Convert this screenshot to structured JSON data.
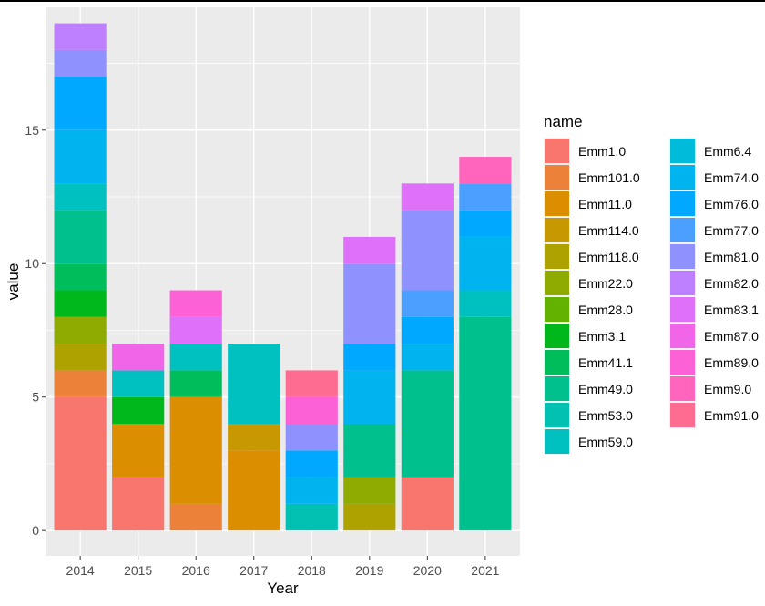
{
  "chart_data": {
    "type": "bar",
    "stacked": true,
    "xlabel": "Year",
    "ylabel": "value",
    "ylim": [
      -0.95,
      19.6
    ],
    "y_ticks": [
      0,
      5,
      10,
      15
    ],
    "categories": [
      "2014",
      "2015",
      "2016",
      "2017",
      "2018",
      "2019",
      "2020",
      "2021"
    ],
    "grid": true,
    "background": "#ebebeb",
    "legend": {
      "title": "name",
      "position": "right",
      "columns": 2
    },
    "series": [
      {
        "name": "Emm1.0",
        "color": "#F8766D",
        "values": [
          5,
          2,
          0,
          0,
          0,
          0,
          2,
          0
        ]
      },
      {
        "name": "Emm101.0",
        "color": "#EC8239",
        "values": [
          1,
          0,
          1,
          0,
          0,
          0,
          0,
          0
        ]
      },
      {
        "name": "Emm11.0",
        "color": "#DB8E00",
        "values": [
          0,
          2,
          4,
          3,
          0,
          0,
          0,
          0
        ]
      },
      {
        "name": "Emm114.0",
        "color": "#C79800",
        "values": [
          0,
          0,
          0,
          1,
          0,
          0,
          0,
          0
        ]
      },
      {
        "name": "Emm118.0",
        "color": "#AEA200",
        "values": [
          1,
          0,
          0,
          0,
          0,
          1,
          0,
          0
        ]
      },
      {
        "name": "Emm22.0",
        "color": "#8FAA00",
        "values": [
          1,
          0,
          0,
          0,
          0,
          1,
          0,
          0
        ]
      },
      {
        "name": "Emm28.0",
        "color": "#64B200",
        "values": [
          0,
          0,
          0,
          0,
          0,
          0,
          0,
          0
        ]
      },
      {
        "name": "Emm3.1",
        "color": "#00B81B",
        "values": [
          1,
          1,
          0,
          0,
          0,
          0,
          0,
          0
        ]
      },
      {
        "name": "Emm41.1",
        "color": "#00BD5C",
        "values": [
          1,
          0,
          1,
          0,
          0,
          0,
          0,
          0
        ]
      },
      {
        "name": "Emm49.0",
        "color": "#00C08D",
        "values": [
          2,
          0,
          0,
          0,
          0,
          2,
          4,
          8
        ]
      },
      {
        "name": "Emm53.0",
        "color": "#00C1B2",
        "values": [
          0,
          0,
          0,
          0,
          1,
          0,
          0,
          0
        ]
      },
      {
        "name": "Emm59.0",
        "color": "#00C0C0",
        "values": [
          1,
          1,
          1,
          3,
          0,
          0,
          0,
          1
        ]
      },
      {
        "name": "Emm6.4",
        "color": "#00BBDA",
        "values": [
          0,
          0,
          0,
          0,
          0,
          0,
          0,
          0
        ]
      },
      {
        "name": "Emm74.0",
        "color": "#00B4EF",
        "values": [
          2,
          0,
          0,
          0,
          1,
          2,
          1,
          2
        ]
      },
      {
        "name": "Emm76.0",
        "color": "#00A8FF",
        "values": [
          2,
          0,
          0,
          0,
          1,
          1,
          1,
          1
        ]
      },
      {
        "name": "Emm77.0",
        "color": "#4A9FFF",
        "values": [
          0,
          0,
          0,
          0,
          0,
          0,
          1,
          1
        ]
      },
      {
        "name": "Emm81.0",
        "color": "#8F91FF",
        "values": [
          1,
          0,
          0,
          0,
          1,
          3,
          3,
          0
        ]
      },
      {
        "name": "Emm82.0",
        "color": "#BE80FF",
        "values": [
          1,
          0,
          0,
          0,
          0,
          0,
          0,
          0
        ]
      },
      {
        "name": "Emm83.1",
        "color": "#DF70F8",
        "values": [
          0,
          0,
          1,
          0,
          0,
          1,
          1,
          0
        ]
      },
      {
        "name": "Emm87.0",
        "color": "#F166E8",
        "values": [
          0,
          1,
          0,
          0,
          0,
          0,
          0,
          0
        ]
      },
      {
        "name": "Emm89.0",
        "color": "#FC61D5",
        "values": [
          0,
          0,
          1,
          0,
          1,
          0,
          0,
          0
        ]
      },
      {
        "name": "Emm9.0",
        "color": "#FF65BC",
        "values": [
          0,
          0,
          0,
          0,
          0,
          0,
          0,
          1
        ]
      },
      {
        "name": "Emm91.0",
        "color": "#FF6C91",
        "values": [
          0,
          0,
          0,
          0,
          1,
          0,
          0,
          0
        ]
      }
    ]
  }
}
